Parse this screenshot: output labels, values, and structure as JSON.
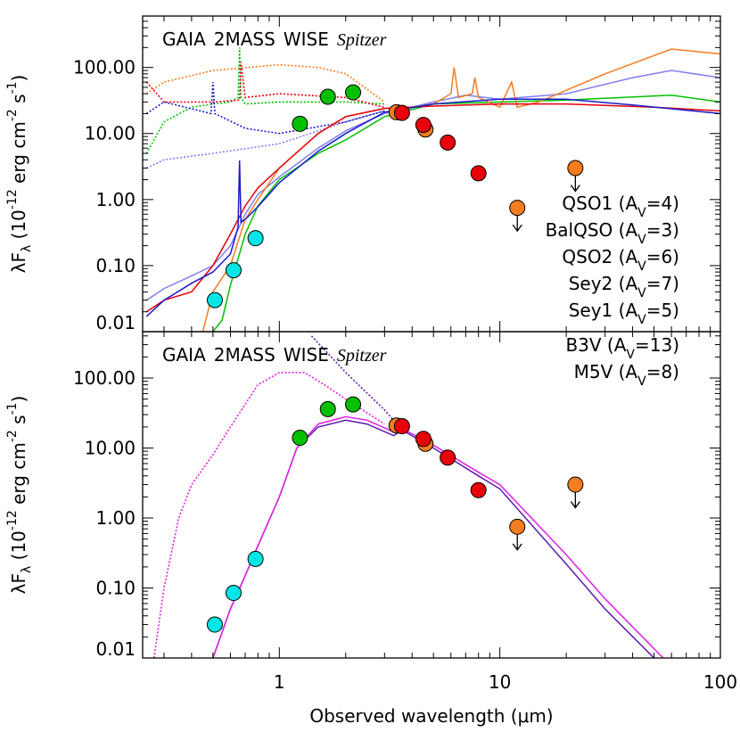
{
  "chart_data": [
    {
      "type": "line",
      "log_x": true,
      "log_y": true,
      "xlim": [
        0.24,
        100
      ],
      "ylim": [
        0.01,
        600
      ],
      "xticks": [
        1,
        10,
        100
      ],
      "xtick_labels": false,
      "xminorticks": [
        0.3,
        0.4,
        0.5,
        0.6,
        0.7,
        0.8,
        0.9,
        2,
        3,
        4,
        5,
        6,
        7,
        8,
        9,
        20,
        30,
        40,
        50,
        60,
        70,
        80,
        90
      ],
      "yticks": [
        0.01,
        {
          "value": 0.1,
          "label": "0.10"
        },
        {
          "value": 1,
          "label": "1.00"
        },
        {
          "value": 10,
          "label": "10.00"
        },
        {
          "value": 100,
          "label": "100.00"
        }
      ],
      "yminorticks": [
        0.02,
        0.03,
        0.04,
        0.05,
        0.06,
        0.07,
        0.08,
        0.09,
        0.2,
        0.3,
        0.4,
        0.5,
        0.6,
        0.7,
        0.8,
        0.9,
        2,
        3,
        4,
        5,
        6,
        7,
        8,
        9,
        20,
        30,
        40,
        50,
        60,
        70,
        80,
        90,
        200,
        300,
        400,
        500
      ],
      "ylabel_parts": [
        {
          "text": "λF"
        },
        {
          "text": "λ",
          "sub": true
        },
        {
          "text": " (10"
        },
        {
          "text": "-12",
          "sup": true
        },
        {
          "text": " erg cm"
        },
        {
          "text": "-2",
          "sup": true
        },
        {
          "text": " s"
        },
        {
          "text": "-1",
          "sup": true
        },
        {
          "text": ")"
        }
      ],
      "legend_loc": "center right",
      "series": [
        {
          "style": "dotted",
          "color": "#00c000",
          "x": [
            0.25,
            0.3,
            0.4,
            0.5,
            0.6,
            0.65,
            0.66,
            0.67,
            0.7,
            1,
            2,
            3
          ],
          "values": [
            5,
            15,
            25,
            28,
            30,
            35,
            200,
            35,
            28,
            30,
            30,
            28
          ]
        },
        {
          "style": "dotted",
          "color": "#f57c1f",
          "x": [
            0.25,
            0.3,
            0.5,
            1,
            1.5,
            2,
            3
          ],
          "values": [
            40,
            60,
            90,
            110,
            100,
            80,
            30
          ]
        },
        {
          "style": "dotted",
          "color": "#e8000b",
          "x": [
            0.25,
            0.3,
            0.5,
            0.66,
            0.67,
            0.7,
            1,
            2,
            3
          ],
          "values": [
            60,
            30,
            30,
            32,
            120,
            35,
            40,
            35,
            25
          ]
        },
        {
          "style": "dotted",
          "color": "#1a1acc",
          "x": [
            0.25,
            0.3,
            0.49,
            0.5,
            0.51,
            0.7,
            1,
            2,
            3
          ],
          "values": [
            20,
            30,
            20,
            60,
            20,
            12,
            10,
            15,
            22
          ]
        },
        {
          "style": "dotted",
          "color": "#8080ee",
          "x": [
            0.25,
            0.3,
            0.5,
            1,
            2,
            3
          ],
          "values": [
            3,
            4,
            5,
            7,
            15,
            22
          ]
        },
        {
          "style": "solid",
          "color": "#8080ee",
          "x": [
            0.25,
            0.3,
            0.4,
            0.5,
            0.6,
            0.7,
            0.8,
            1,
            1.5,
            2,
            3,
            5,
            7,
            10,
            20,
            40,
            60,
            100
          ],
          "values": [
            0.03,
            0.045,
            0.07,
            0.1,
            0.2,
            0.6,
            1.2,
            2.2,
            6,
            11,
            20,
            30,
            38,
            33,
            40,
            70,
            90,
            70
          ],
          "label_parts": [
            {
              "text": "BalQSO (A"
            },
            {
              "text": "V",
              "sub": true
            },
            {
              "text": "=3)"
            }
          ]
        },
        {
          "style": "solid",
          "color": "#00c000",
          "x": [
            0.5,
            0.55,
            0.6,
            0.7,
            0.8,
            1,
            1.5,
            2,
            3,
            5,
            10,
            20,
            60,
            100
          ],
          "values": [
            0.01,
            0.015,
            0.05,
            0.3,
            0.8,
            2,
            5,
            8,
            18,
            28,
            30,
            32,
            38,
            30
          ],
          "label_parts": [
            {
              "text": "QSO2 (A"
            },
            {
              "text": "V",
              "sub": true
            },
            {
              "text": "=6)"
            }
          ]
        },
        {
          "style": "solid",
          "color": "#f57c1f",
          "x": [
            0.45,
            0.5,
            0.6,
            0.7,
            0.8,
            1,
            1.5,
            2,
            3,
            4,
            5,
            6,
            6.2,
            6.5,
            7.5,
            7.7,
            8,
            10,
            11.3,
            12,
            15,
            30,
            60,
            100
          ],
          "values": [
            0.01,
            0.04,
            0.1,
            0.5,
            1,
            3,
            10,
            18,
            24,
            25,
            28,
            40,
            100,
            35,
            40,
            70,
            35,
            25,
            60,
            25,
            30,
            80,
            190,
            160
          ],
          "label_parts": [
            {
              "text": "Sey2 (A"
            },
            {
              "text": "V",
              "sub": true
            },
            {
              "text": "=7)"
            }
          ]
        },
        {
          "style": "solid",
          "color": "#e8000b",
          "x": [
            0.25,
            0.3,
            0.4,
            0.5,
            0.6,
            0.7,
            0.8,
            1,
            1.5,
            2,
            3,
            5,
            10,
            20,
            50,
            100
          ],
          "values": [
            0.02,
            0.03,
            0.04,
            0.1,
            0.3,
            0.8,
            1.5,
            3,
            10,
            18,
            24,
            26,
            28,
            28,
            25,
            22
          ],
          "label_parts": [
            {
              "text": "Sey1 (A"
            },
            {
              "text": "V",
              "sub": true
            },
            {
              "text": "=5)"
            }
          ]
        },
        {
          "style": "solid",
          "color": "#1a1acc",
          "x": [
            0.25,
            0.3,
            0.4,
            0.5,
            0.6,
            0.65,
            0.66,
            0.67,
            0.7,
            0.8,
            1,
            1.5,
            2,
            3,
            5,
            10,
            20,
            40,
            100
          ],
          "values": [
            0.017,
            0.03,
            0.054,
            0.08,
            0.15,
            0.38,
            3.9,
            0.45,
            0.5,
            0.78,
            1.8,
            5.4,
            10,
            21,
            28,
            33,
            33,
            27,
            20
          ],
          "label_parts": [
            {
              "text": "QSO1 (A"
            },
            {
              "text": "V",
              "sub": true
            },
            {
              "text": "=4)"
            }
          ]
        },
        {
          "style": "markers",
          "name": "GAIA",
          "color": "#00e5e5",
          "x": [
            0.51,
            0.62,
            0.78
          ],
          "values": [
            0.03,
            0.085,
            0.26
          ]
        },
        {
          "style": "markers",
          "name": "2MASS",
          "color": "#00c000",
          "x": [
            1.24,
            1.66,
            2.16
          ],
          "values": [
            14,
            36,
            42
          ]
        },
        {
          "style": "markers",
          "name": "WISE",
          "color": "#f57c1f",
          "x": [
            3.4,
            4.6,
            12,
            22
          ],
          "values": [
            21,
            11.5,
            0.75,
            3
          ],
          "upper_limits": [
            false,
            false,
            true,
            true
          ]
        },
        {
          "style": "markers",
          "name": "Spitzer",
          "italic": true,
          "color": "#e8000b",
          "x": [
            3.6,
            4.5,
            5.8,
            8.0
          ],
          "values": [
            20.5,
            13.5,
            7.3,
            2.5
          ]
        }
      ]
    },
    {
      "type": "line",
      "log_x": true,
      "log_y": true,
      "xlim": [
        0.24,
        100
      ],
      "ylim": [
        0.01,
        460
      ],
      "xticks": [
        1,
        10,
        100
      ],
      "xtick_labels": true,
      "xminorticks": [
        0.3,
        0.4,
        0.5,
        0.6,
        0.7,
        0.8,
        0.9,
        2,
        3,
        4,
        5,
        6,
        7,
        8,
        9,
        20,
        30,
        40,
        50,
        60,
        70,
        80,
        90
      ],
      "yticks": [
        0.01,
        {
          "value": 0.1,
          "label": "0.10"
        },
        {
          "value": 1,
          "label": "1.00"
        },
        {
          "value": 10,
          "label": "10.00"
        },
        {
          "value": 100,
          "label": "100.00"
        }
      ],
      "yminorticks": [
        0.02,
        0.03,
        0.04,
        0.05,
        0.06,
        0.07,
        0.08,
        0.09,
        0.2,
        0.3,
        0.4,
        0.5,
        0.6,
        0.7,
        0.8,
        0.9,
        2,
        3,
        4,
        5,
        6,
        7,
        8,
        9,
        20,
        30,
        40,
        50,
        60,
        70,
        80,
        90,
        200,
        300,
        400
      ],
      "xlabel": "Observed wavelength (μm)",
      "ylabel_parts": [
        {
          "text": "λF"
        },
        {
          "text": "λ",
          "sub": true
        },
        {
          "text": " (10"
        },
        {
          "text": "-12",
          "sup": true
        },
        {
          "text": " erg cm"
        },
        {
          "text": "-2",
          "sup": true
        },
        {
          "text": " s"
        },
        {
          "text": "-1",
          "sup": true
        },
        {
          "text": ")"
        }
      ],
      "legend_loc": "upper right",
      "series": [
        {
          "style": "dotted",
          "color": "#e020e0",
          "x": [
            0.27,
            0.3,
            0.35,
            0.4,
            0.5,
            0.6,
            0.8,
            1,
            1.3,
            1.6,
            2,
            3
          ],
          "values": [
            0.01,
            0.1,
            1,
            3,
            8,
            20,
            80,
            120,
            120,
            80,
            50,
            22
          ]
        },
        {
          "style": "dotted",
          "color": "#5a1ab0",
          "x": [
            1.4,
            2,
            3,
            3.5
          ],
          "values": [
            400,
            120,
            35,
            20
          ]
        },
        {
          "style": "solid",
          "color": "#5a1ab0",
          "x": [
            0.5,
            0.6,
            0.7,
            0.8,
            1,
            1.2,
            1.5,
            2,
            2.5,
            3.3,
            3.6,
            4,
            5,
            8,
            10,
            20,
            30,
            50
          ],
          "values": [
            0.01,
            0.05,
            0.15,
            0.4,
            2,
            10,
            20,
            25,
            22,
            15,
            18,
            15,
            10,
            4,
            2.6,
            0.22,
            0.05,
            0.01
          ],
          "label_parts": [
            {
              "text": "B3V (A"
            },
            {
              "text": "V",
              "sub": true
            },
            {
              "text": "=13)"
            }
          ]
        },
        {
          "style": "solid",
          "color": "#e020e0",
          "x": [
            0.5,
            0.6,
            0.7,
            0.8,
            1,
            1.2,
            1.5,
            2,
            2.5,
            3.3,
            3.6,
            4,
            5,
            8,
            10,
            20,
            30,
            55
          ],
          "values": [
            0.01,
            0.05,
            0.15,
            0.4,
            2,
            10,
            22,
            28,
            25,
            17,
            19,
            16,
            11,
            4.5,
            3,
            0.3,
            0.07,
            0.01
          ],
          "label_parts": [
            {
              "text": "M5V (A"
            },
            {
              "text": "V",
              "sub": true
            },
            {
              "text": "=8)"
            }
          ]
        },
        {
          "style": "markers",
          "name": "GAIA",
          "color": "#00e5e5",
          "x": [
            0.51,
            0.62,
            0.78
          ],
          "values": [
            0.03,
            0.085,
            0.26
          ]
        },
        {
          "style": "markers",
          "name": "2MASS",
          "color": "#00c000",
          "x": [
            1.24,
            1.66,
            2.16
          ],
          "values": [
            14,
            36,
            42
          ]
        },
        {
          "style": "markers",
          "name": "WISE",
          "color": "#f57c1f",
          "x": [
            3.4,
            4.6,
            12,
            22
          ],
          "values": [
            21,
            11.5,
            0.75,
            3
          ],
          "upper_limits": [
            false,
            false,
            true,
            true
          ]
        },
        {
          "style": "markers",
          "name": "Spitzer",
          "italic": true,
          "color": "#e8000b",
          "x": [
            3.6,
            4.5,
            5.8,
            8.0
          ],
          "values": [
            20.5,
            13.5,
            7.3,
            2.5
          ]
        }
      ]
    }
  ]
}
